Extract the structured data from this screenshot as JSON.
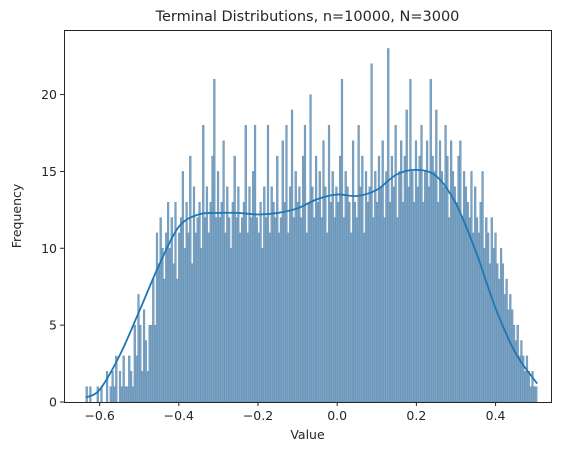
{
  "chart_data": {
    "type": "bar",
    "title": "Terminal Distributions, n=10000, N=3000",
    "xlabel": "Value",
    "ylabel": "Frequency",
    "xlim": [
      -0.69,
      0.54
    ],
    "ylim": [
      0,
      24.2
    ],
    "x_ticks": [
      {
        "value": -0.6,
        "label": "−0.6"
      },
      {
        "value": -0.4,
        "label": "−0.4"
      },
      {
        "value": -0.2,
        "label": "−0.2"
      },
      {
        "value": 0.0,
        "label": "0.0"
      },
      {
        "value": 0.2,
        "label": "0.2"
      },
      {
        "value": 0.4,
        "label": "0.4"
      }
    ],
    "y_ticks": [
      {
        "value": 0,
        "label": "0"
      },
      {
        "value": 5,
        "label": "5"
      },
      {
        "value": 10,
        "label": "10"
      },
      {
        "value": 15,
        "label": "15"
      },
      {
        "value": 20,
        "label": "20"
      }
    ],
    "grid": false,
    "bar_color": "#7ba3c4",
    "bar_edge_color": "#5b87ab",
    "kde_color": "#1f77b4",
    "bins": {
      "start": -0.635,
      "end": 0.505,
      "counts": [
        1,
        0,
        1,
        0,
        0,
        0,
        1,
        0,
        1,
        0,
        0,
        2,
        0,
        1,
        2,
        1,
        3,
        0,
        2,
        1,
        3,
        1,
        1,
        3,
        2,
        1,
        5,
        3,
        7,
        5,
        2,
        6,
        4,
        2,
        5,
        5,
        8,
        5,
        11,
        9,
        12,
        10,
        8,
        11,
        13,
        10,
        12,
        9,
        13,
        8,
        11,
        12,
        15,
        10,
        13,
        11,
        16,
        9,
        14,
        11,
        12,
        13,
        10,
        18,
        12,
        14,
        11,
        13,
        16,
        21,
        12,
        15,
        12,
        13,
        17,
        11,
        14,
        12,
        10,
        13,
        16,
        12,
        14,
        11,
        12,
        13,
        18,
        11,
        14,
        12,
        15,
        18,
        12,
        11,
        13,
        10,
        14,
        12,
        18,
        11,
        14,
        13,
        12,
        16,
        11,
        12,
        17,
        13,
        18,
        11,
        14,
        19,
        12,
        15,
        13,
        14,
        12,
        16,
        18,
        11,
        13,
        20,
        14,
        12,
        16,
        13,
        15,
        12,
        17,
        14,
        11,
        18,
        13,
        15,
        12,
        14,
        13,
        16,
        21,
        12,
        15,
        14,
        13,
        11,
        17,
        13,
        12,
        18,
        14,
        16,
        11,
        15,
        13,
        14,
        22,
        12,
        15,
        13,
        16,
        14,
        17,
        12,
        15,
        23,
        13,
        16,
        14,
        18,
        12,
        15,
        17,
        13,
        16,
        19,
        14,
        21,
        15,
        13,
        17,
        14,
        16,
        18,
        13,
        15,
        17,
        14,
        21,
        16,
        15,
        19,
        13,
        17,
        15,
        14,
        18,
        16,
        12,
        17,
        15,
        14,
        13,
        16,
        17,
        12,
        15,
        14,
        13,
        12,
        15,
        11,
        14,
        12,
        11,
        13,
        15,
        10,
        12,
        11,
        9,
        12,
        10,
        11,
        9,
        8,
        10,
        9,
        7,
        8,
        6,
        7,
        6,
        5,
        4,
        5,
        3,
        4,
        3,
        2,
        3,
        2,
        1,
        2,
        1,
        1
      ]
    },
    "kde": {
      "x": [
        -0.635,
        -0.6,
        -0.55,
        -0.5,
        -0.45,
        -0.4,
        -0.35,
        -0.3,
        -0.25,
        -0.2,
        -0.15,
        -0.1,
        -0.05,
        0.0,
        0.05,
        0.1,
        0.15,
        0.2,
        0.25,
        0.3,
        0.35,
        0.4,
        0.45,
        0.505
      ],
      "y": [
        0.3,
        0.8,
        3.0,
        5.9,
        8.9,
        11.4,
        12.2,
        12.3,
        12.3,
        12.2,
        12.3,
        12.6,
        13.2,
        13.5,
        13.4,
        13.8,
        14.8,
        15.1,
        14.7,
        12.9,
        9.8,
        6.1,
        3.2,
        1.2
      ]
    }
  }
}
